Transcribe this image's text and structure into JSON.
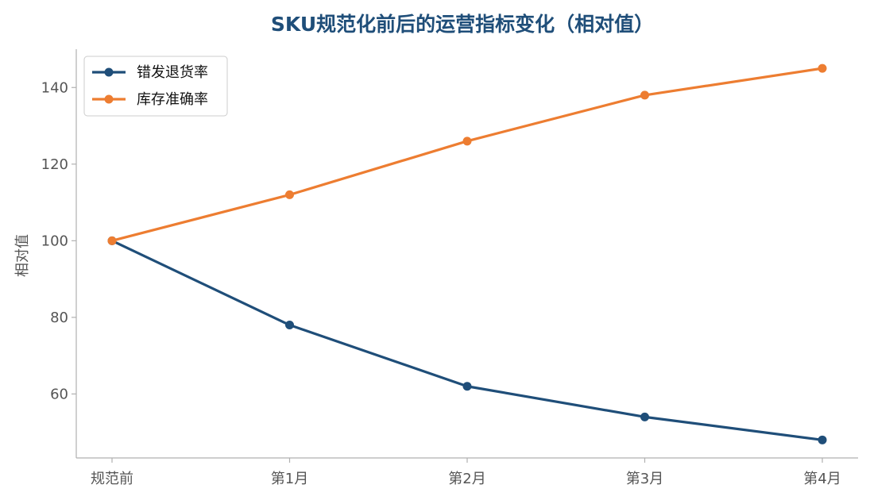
{
  "chart_data": {
    "type": "line",
    "title": "SKU规范化前后的运营指标变化（相对值）",
    "xlabel": "",
    "ylabel": "相对值",
    "categories": [
      "规范前",
      "第1月",
      "第2月",
      "第3月",
      "第4月"
    ],
    "ylim": [
      43.3,
      150
    ],
    "yticks": [
      60,
      80,
      100,
      120,
      140
    ],
    "grid": false,
    "legend_position": "top-left",
    "series": [
      {
        "name": "错发退货率",
        "values": [
          100,
          78,
          62,
          54,
          48
        ],
        "color": "#1f4e79"
      },
      {
        "name": "库存准确率",
        "values": [
          100,
          112,
          126,
          138,
          145
        ],
        "color": "#ed7d31"
      }
    ]
  }
}
